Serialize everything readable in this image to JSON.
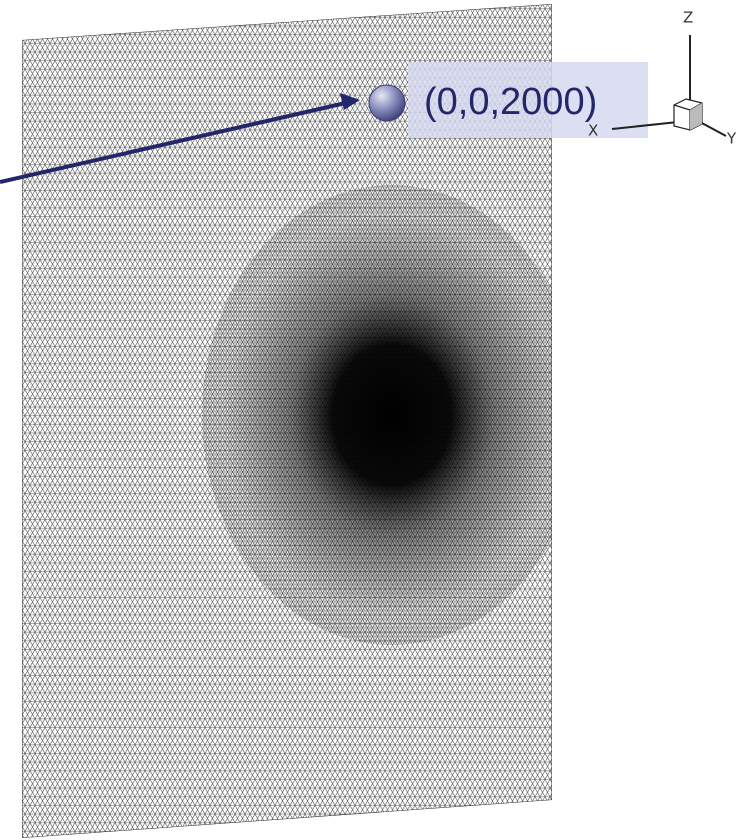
{
  "annotation": {
    "label": "(0,0,2000)"
  },
  "axes_triad": {
    "z": "Z",
    "x": "X",
    "y": "Y"
  }
}
